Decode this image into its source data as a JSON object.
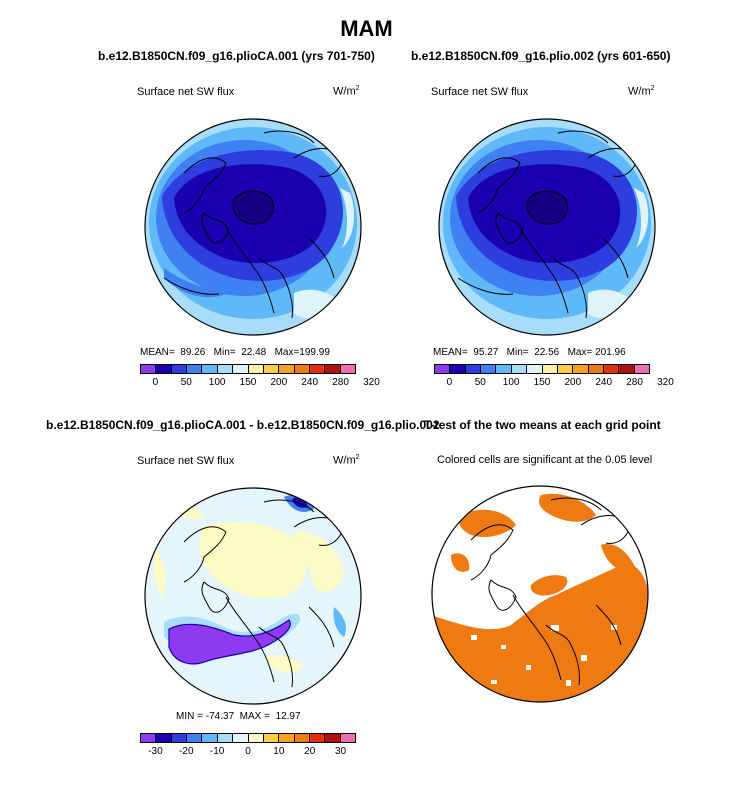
{
  "title": "MAM",
  "panels": {
    "p1": {
      "title": "b.e12.B1850CN.f09_g16.plioCA.001 (yrs 701-750)",
      "left_label": "Surface net SW flux",
      "unit": "W/m",
      "unit_sup": "2",
      "mean_label": "MEAN=",
      "mean_value": "89.26",
      "min_label": "Min=",
      "min_value": "22.48",
      "max_label": "Max=",
      "max_value": "199.99"
    },
    "p2": {
      "title": "b.e12.B1850CN.f09_g16.plio.002 (yrs 601-650)",
      "left_label": "Surface net SW flux",
      "unit": "W/m",
      "unit_sup": "2",
      "mean_label": "MEAN=",
      "mean_value": "95.27",
      "min_label": "Min=",
      "min_value": "22.56",
      "max_label": "Max=",
      "max_value": "201.96"
    },
    "p3": {
      "title": "b.e12.B1850CN.f09_g16.plioCA.001 - b.e12.B1850CN.f09_g16.plio.002",
      "left_label": "Surface net SW flux",
      "unit": "W/m",
      "unit_sup": "2",
      "min_label": "MIN =",
      "min_value": "-74.37",
      "max_label": "MAX =",
      "max_value": "12.97"
    },
    "p4": {
      "title": "T-test of the two means at each grid point",
      "subtitle": "Colored cells are significant at the 0.05 level"
    }
  },
  "colorbar_abs": {
    "labels": [
      "0",
      "50",
      "100",
      "150",
      "200",
      "240",
      "280",
      "320"
    ],
    "colors": [
      "#8e3bf0",
      "#1a00b0",
      "#2e3dde",
      "#3f80f2",
      "#5fb8f8",
      "#a8ddfa",
      "#dff3fb",
      "#fbf2a6",
      "#fbd040",
      "#f7a21c",
      "#f07a12",
      "#e03010",
      "#b01010",
      "#ee6cb0"
    ]
  },
  "colorbar_diff": {
    "labels": [
      "-30",
      "-20",
      "-10",
      "0",
      "10",
      "20",
      "30"
    ],
    "colors": [
      "#8e3bf0",
      "#1a00b0",
      "#2e3dde",
      "#3f80f2",
      "#5fb8f8",
      "#a8ddfa",
      "#e4f5fc",
      "#fdfbc6",
      "#fbd040",
      "#f7a21c",
      "#f07a12",
      "#e03010",
      "#b01010",
      "#ee6cb0"
    ]
  },
  "ttest_color": "#f07a12"
}
